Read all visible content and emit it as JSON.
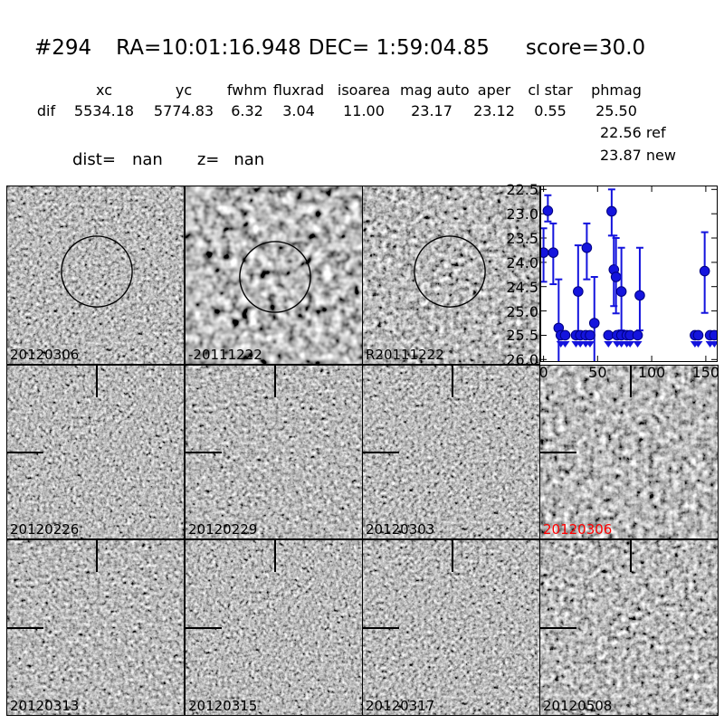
{
  "header": {
    "id": "#294",
    "ra": "RA=10:01:16.948",
    "dec": "DEC= 1:59:04.85",
    "score": "score=30.0"
  },
  "params": {
    "headers": [
      "xc",
      "yc",
      "fwhm",
      "fluxrad",
      "isoarea",
      "mag auto",
      "aper",
      "cl star",
      "phmag"
    ],
    "row_label": "dif",
    "values": [
      "5534.18",
      "5774.83",
      "6.32",
      "3.04",
      "11.00",
      "23.17",
      "23.12",
      "0.55",
      "25.50"
    ],
    "ref_line": "22.56 ref",
    "new_line": "23.87 new",
    "dist_label": "dist=",
    "dist_value": "nan",
    "z_label": "z=",
    "z_value": "nan"
  },
  "panels": {
    "row1": [
      {
        "label": "20120306",
        "overlay": "circle"
      },
      {
        "label": "-20111222",
        "overlay": "circle"
      },
      {
        "label": "R20111222",
        "overlay": "circle"
      }
    ],
    "row2": [
      {
        "label": "20120226",
        "overlay": "crosshair"
      },
      {
        "label": "20120229",
        "overlay": "crosshair"
      },
      {
        "label": "20120303",
        "overlay": "crosshair"
      },
      {
        "label": "20120306",
        "overlay": "crosshair",
        "label_color": "#ff0000"
      }
    ],
    "row3": [
      {
        "label": "20120313",
        "overlay": "crosshair"
      },
      {
        "label": "20120315",
        "overlay": "crosshair"
      },
      {
        "label": "20120317",
        "overlay": "crosshair"
      },
      {
        "label": "20120508",
        "overlay": "crosshair"
      }
    ]
  },
  "chart_data": {
    "type": "scatter",
    "title": "",
    "xlabel": "",
    "ylabel": "",
    "x_ticks": [
      0,
      50,
      100,
      150
    ],
    "y_ticks": [
      22.5,
      23.0,
      23.5,
      24.0,
      24.5,
      25.0,
      25.5,
      26.0
    ],
    "xlim": [
      -3,
      161
    ],
    "ylim": [
      22.42,
      26.05
    ],
    "y_inverted": true,
    "grid": false,
    "legend": "none",
    "marker_color": "#1414dd",
    "marker_edge": "#000080",
    "background": "#ffffff",
    "detections": [
      {
        "x": 0,
        "mag": 23.8,
        "err_lo": 23.3,
        "err_hi": 24.4
      },
      {
        "x": 4,
        "mag": 22.94,
        "err_lo": 22.62,
        "err_hi": 23.16
      },
      {
        "x": 9,
        "mag": 23.8,
        "err_lo": 23.2,
        "err_hi": 24.45
      },
      {
        "x": 14,
        "mag": 25.35,
        "err_lo": 24.35,
        "err_hi": 26.4
      },
      {
        "x": 32,
        "mag": 24.6,
        "err_lo": 23.65,
        "err_hi": 25.5
      },
      {
        "x": 40,
        "mag": 23.7,
        "err_lo": 23.2,
        "err_hi": 24.35
      },
      {
        "x": 47,
        "mag": 25.25,
        "err_lo": 24.3,
        "err_hi": 26.4
      },
      {
        "x": 63,
        "mag": 22.95,
        "err_lo": 22.5,
        "err_hi": 23.45
      },
      {
        "x": 65,
        "mag": 24.15,
        "err_lo": 23.45,
        "err_hi": 24.9
      },
      {
        "x": 67,
        "mag": 24.3,
        "err_lo": 23.5,
        "err_hi": 25.05
      },
      {
        "x": 72,
        "mag": 24.6,
        "err_lo": 23.7,
        "err_hi": 25.4
      },
      {
        "x": 89,
        "mag": 24.68,
        "err_lo": 23.7,
        "err_hi": 25.4
      },
      {
        "x": 149,
        "mag": 24.18,
        "err_lo": 23.38,
        "err_hi": 25.04
      }
    ],
    "upper_limits": {
      "mag": 25.5,
      "x": [
        16,
        20,
        30,
        34,
        39,
        43,
        60,
        68,
        72,
        77,
        80,
        87,
        140,
        143,
        154,
        158
      ]
    }
  }
}
